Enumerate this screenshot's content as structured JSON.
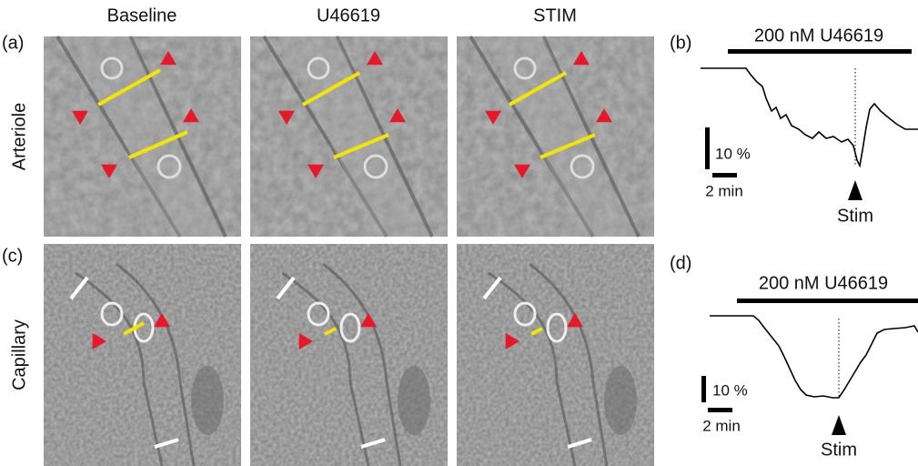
{
  "header": {
    "columns": [
      "Baseline",
      "U46619",
      "STIM"
    ]
  },
  "rows": [
    "Arteriole",
    "Capillary"
  ],
  "panels": {
    "a": "(a)",
    "b": "(b)",
    "c": "(c)",
    "d": "(d)"
  },
  "trace_b": {
    "drug": "200 nM U46619",
    "scale_y": "10 %",
    "scale_x": "2 min",
    "marker": "Stim"
  },
  "trace_d": {
    "drug": "200 nM U46619",
    "scale_y": "10 %",
    "scale_x": "2 min",
    "marker": "Stim"
  }
}
